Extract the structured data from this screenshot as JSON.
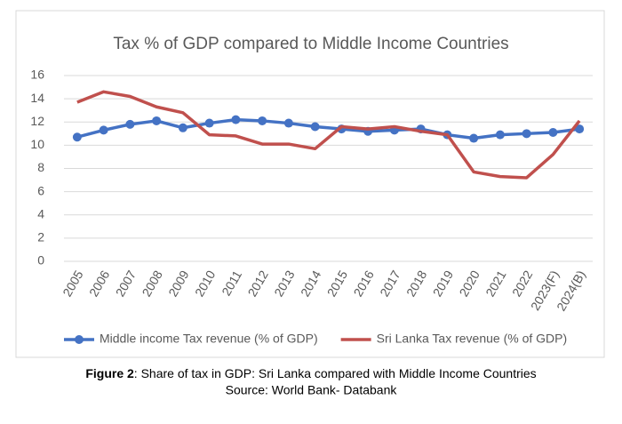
{
  "chart_data": {
    "type": "line",
    "title": "Tax % of GDP compared to Middle Income Countries",
    "categories": [
      "2005",
      "2006",
      "2007",
      "2008",
      "2009",
      "2010",
      "2011",
      "2012",
      "2013",
      "2014",
      "2015",
      "2016",
      "2017",
      "2018",
      "2019",
      "2020",
      "2021",
      "2022",
      "2023(F)",
      "2024(B)"
    ],
    "series": [
      {
        "name": "Middle income Tax revenue (% of GDP)",
        "color": "#4472c4",
        "marker": true,
        "values": [
          10.7,
          11.3,
          11.8,
          12.1,
          11.5,
          11.9,
          12.2,
          12.1,
          11.9,
          11.6,
          11.4,
          11.2,
          11.3,
          11.4,
          10.9,
          10.6,
          10.9,
          11.0,
          11.1,
          11.4
        ]
      },
      {
        "name": "Sri Lanka Tax revenue (% of GDP)",
        "color": "#c0504d",
        "marker": false,
        "values": [
          13.7,
          14.6,
          14.2,
          13.3,
          12.8,
          10.9,
          10.8,
          10.1,
          10.1,
          9.7,
          11.6,
          11.4,
          11.6,
          11.2,
          10.9,
          7.7,
          7.3,
          7.2,
          9.2,
          12.1
        ]
      }
    ],
    "ylim": [
      0,
      16
    ],
    "yticks": [
      0,
      2,
      4,
      6,
      8,
      10,
      12,
      14,
      16
    ],
    "grid": true,
    "legend": "bottom"
  },
  "caption": {
    "label": "Figure 2",
    "text": ": Share of tax in GDP: Sri Lanka compared with Middle Income Countries"
  },
  "source": "Source: World Bank- Databank"
}
